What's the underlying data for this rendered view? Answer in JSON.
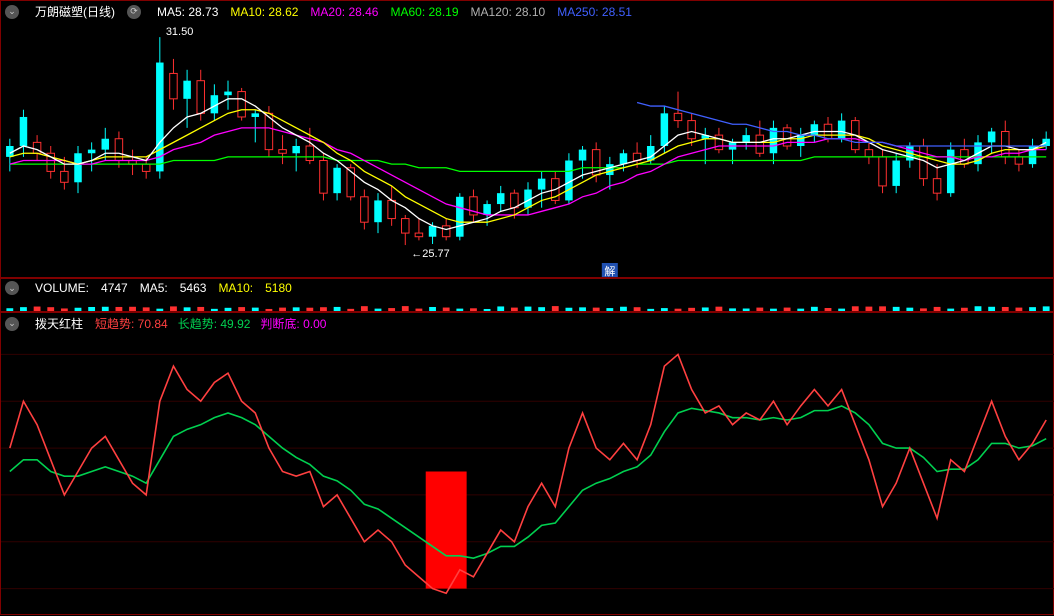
{
  "colors": {
    "bg": "#000000",
    "border": "#800000",
    "grid": "#300000",
    "text_white": "#ffffff",
    "text_gray": "#b0b0b0",
    "ma5": "#ffffff",
    "ma10": "#ffff00",
    "ma20": "#ff00ff",
    "ma60": "#00ff00",
    "ma120": "#b0b0b0",
    "ma250": "#4060ff",
    "candle_up": "#00ffff",
    "candle_down": "#ff3030",
    "volume_label": "#ffffff",
    "vol_ma10": "#ffff00",
    "short": "#ff4040",
    "long": "#00d050",
    "judge": "#ff00ff",
    "red_bar": "#ff0000"
  },
  "main_header": {
    "title": "万朗磁塑(日线)",
    "mas": [
      {
        "label": "MA5:",
        "value": "28.73",
        "colorKey": "ma5"
      },
      {
        "label": "MA10:",
        "value": "28.62",
        "colorKey": "ma10"
      },
      {
        "label": "MA20:",
        "value": "28.46",
        "colorKey": "ma20"
      },
      {
        "label": "MA60:",
        "value": "28.19",
        "colorKey": "ma60"
      },
      {
        "label": "MA120:",
        "value": "28.10",
        "colorKey": "ma120"
      },
      {
        "label": "MA250:",
        "value": "28.51",
        "colorKey": "ma250"
      }
    ]
  },
  "main_chart": {
    "ylim": [
      25.0,
      32.0
    ],
    "high_label": "31.50",
    "low_label": "25.77",
    "jie_label": "解",
    "candles": [
      {
        "o": 28.2,
        "h": 28.7,
        "l": 27.8,
        "c": 28.5,
        "up": true
      },
      {
        "o": 28.5,
        "h": 29.5,
        "l": 28.2,
        "c": 29.3,
        "up": true
      },
      {
        "o": 28.6,
        "h": 28.8,
        "l": 28.1,
        "c": 28.3,
        "up": false
      },
      {
        "o": 28.3,
        "h": 28.5,
        "l": 27.6,
        "c": 27.8,
        "up": false
      },
      {
        "o": 27.8,
        "h": 28.2,
        "l": 27.3,
        "c": 27.5,
        "up": false
      },
      {
        "o": 27.5,
        "h": 28.5,
        "l": 27.2,
        "c": 28.3,
        "up": true
      },
      {
        "o": 28.3,
        "h": 28.6,
        "l": 27.8,
        "c": 28.4,
        "up": true
      },
      {
        "o": 28.4,
        "h": 29.0,
        "l": 28.1,
        "c": 28.7,
        "up": true
      },
      {
        "o": 28.7,
        "h": 28.9,
        "l": 27.9,
        "c": 28.1,
        "up": false
      },
      {
        "o": 28.1,
        "h": 28.4,
        "l": 27.7,
        "c": 28.0,
        "up": false
      },
      {
        "o": 28.0,
        "h": 28.2,
        "l": 27.6,
        "c": 27.8,
        "up": false
      },
      {
        "o": 27.8,
        "h": 31.5,
        "l": 27.6,
        "c": 30.8,
        "up": true
      },
      {
        "o": 30.5,
        "h": 30.9,
        "l": 29.5,
        "c": 29.8,
        "up": false
      },
      {
        "o": 29.8,
        "h": 30.6,
        "l": 29.0,
        "c": 30.3,
        "up": true
      },
      {
        "o": 30.3,
        "h": 30.6,
        "l": 29.2,
        "c": 29.4,
        "up": false
      },
      {
        "o": 29.4,
        "h": 30.2,
        "l": 29.2,
        "c": 29.9,
        "up": true
      },
      {
        "o": 29.9,
        "h": 30.3,
        "l": 29.5,
        "c": 30.0,
        "up": true
      },
      {
        "o": 30.0,
        "h": 30.1,
        "l": 29.2,
        "c": 29.3,
        "up": false
      },
      {
        "o": 29.3,
        "h": 29.5,
        "l": 28.6,
        "c": 29.4,
        "up": true
      },
      {
        "o": 29.4,
        "h": 29.6,
        "l": 28.2,
        "c": 28.4,
        "up": false
      },
      {
        "o": 28.4,
        "h": 28.8,
        "l": 28.0,
        "c": 28.3,
        "up": false
      },
      {
        "o": 28.3,
        "h": 28.7,
        "l": 27.8,
        "c": 28.5,
        "up": true
      },
      {
        "o": 28.5,
        "h": 29.0,
        "l": 28.0,
        "c": 28.1,
        "up": false
      },
      {
        "o": 28.1,
        "h": 28.3,
        "l": 27.0,
        "c": 27.2,
        "up": false
      },
      {
        "o": 27.2,
        "h": 28.0,
        "l": 27.0,
        "c": 27.9,
        "up": true
      },
      {
        "o": 27.9,
        "h": 28.0,
        "l": 27.0,
        "c": 27.1,
        "up": false
      },
      {
        "o": 27.1,
        "h": 27.3,
        "l": 26.2,
        "c": 26.4,
        "up": false
      },
      {
        "o": 26.4,
        "h": 27.2,
        "l": 26.1,
        "c": 27.0,
        "up": true
      },
      {
        "o": 27.0,
        "h": 27.4,
        "l": 26.3,
        "c": 26.5,
        "up": false
      },
      {
        "o": 26.5,
        "h": 26.6,
        "l": 25.77,
        "c": 26.1,
        "up": false
      },
      {
        "o": 26.1,
        "h": 26.5,
        "l": 25.9,
        "c": 26.0,
        "up": false
      },
      {
        "o": 26.0,
        "h": 26.4,
        "l": 25.8,
        "c": 26.3,
        "up": true
      },
      {
        "o": 26.3,
        "h": 26.5,
        "l": 25.9,
        "c": 26.0,
        "up": false
      },
      {
        "o": 26.0,
        "h": 27.2,
        "l": 25.9,
        "c": 27.1,
        "up": true
      },
      {
        "o": 27.1,
        "h": 27.3,
        "l": 26.4,
        "c": 26.6,
        "up": false
      },
      {
        "o": 26.6,
        "h": 27.0,
        "l": 26.3,
        "c": 26.9,
        "up": true
      },
      {
        "o": 26.9,
        "h": 27.4,
        "l": 26.7,
        "c": 27.2,
        "up": true
      },
      {
        "o": 27.2,
        "h": 27.3,
        "l": 26.5,
        "c": 26.8,
        "up": false
      },
      {
        "o": 26.8,
        "h": 27.5,
        "l": 26.6,
        "c": 27.3,
        "up": true
      },
      {
        "o": 27.3,
        "h": 27.8,
        "l": 26.8,
        "c": 27.6,
        "up": true
      },
      {
        "o": 27.6,
        "h": 27.8,
        "l": 26.9,
        "c": 27.0,
        "up": false
      },
      {
        "o": 27.0,
        "h": 28.3,
        "l": 26.9,
        "c": 28.1,
        "up": true
      },
      {
        "o": 28.1,
        "h": 28.5,
        "l": 27.6,
        "c": 28.4,
        "up": true
      },
      {
        "o": 28.4,
        "h": 28.6,
        "l": 27.5,
        "c": 27.7,
        "up": false
      },
      {
        "o": 27.7,
        "h": 28.2,
        "l": 27.3,
        "c": 28.0,
        "up": true
      },
      {
        "o": 28.0,
        "h": 28.4,
        "l": 27.8,
        "c": 28.3,
        "up": true
      },
      {
        "o": 28.3,
        "h": 28.6,
        "l": 27.9,
        "c": 28.1,
        "up": false
      },
      {
        "o": 28.1,
        "h": 28.8,
        "l": 28.0,
        "c": 28.5,
        "up": true
      },
      {
        "o": 28.5,
        "h": 29.6,
        "l": 28.3,
        "c": 29.4,
        "up": true
      },
      {
        "o": 29.4,
        "h": 30.0,
        "l": 29.0,
        "c": 29.2,
        "up": false
      },
      {
        "o": 29.2,
        "h": 29.4,
        "l": 28.5,
        "c": 28.7,
        "up": false
      },
      {
        "o": 28.7,
        "h": 29.0,
        "l": 28.0,
        "c": 28.8,
        "up": true
      },
      {
        "o": 28.8,
        "h": 29.0,
        "l": 28.3,
        "c": 28.4,
        "up": false
      },
      {
        "o": 28.4,
        "h": 28.7,
        "l": 28.0,
        "c": 28.6,
        "up": true
      },
      {
        "o": 28.6,
        "h": 29.0,
        "l": 28.4,
        "c": 28.8,
        "up": true
      },
      {
        "o": 28.8,
        "h": 29.2,
        "l": 28.2,
        "c": 28.3,
        "up": false
      },
      {
        "o": 28.3,
        "h": 29.2,
        "l": 28.0,
        "c": 29.0,
        "up": true
      },
      {
        "o": 29.0,
        "h": 29.1,
        "l": 28.4,
        "c": 28.5,
        "up": false
      },
      {
        "o": 28.5,
        "h": 29.0,
        "l": 28.2,
        "c": 28.8,
        "up": true
      },
      {
        "o": 28.8,
        "h": 29.2,
        "l": 28.6,
        "c": 29.1,
        "up": true
      },
      {
        "o": 29.1,
        "h": 29.3,
        "l": 28.6,
        "c": 28.7,
        "up": false
      },
      {
        "o": 28.7,
        "h": 29.4,
        "l": 28.6,
        "c": 29.2,
        "up": true
      },
      {
        "o": 29.2,
        "h": 29.3,
        "l": 28.3,
        "c": 28.4,
        "up": false
      },
      {
        "o": 28.4,
        "h": 28.6,
        "l": 28.0,
        "c": 28.2,
        "up": false
      },
      {
        "o": 28.2,
        "h": 28.4,
        "l": 27.2,
        "c": 27.4,
        "up": false
      },
      {
        "o": 27.4,
        "h": 28.3,
        "l": 27.2,
        "c": 28.1,
        "up": true
      },
      {
        "o": 28.1,
        "h": 28.6,
        "l": 27.9,
        "c": 28.5,
        "up": true
      },
      {
        "o": 28.5,
        "h": 28.7,
        "l": 27.4,
        "c": 27.6,
        "up": false
      },
      {
        "o": 27.6,
        "h": 28.0,
        "l": 27.0,
        "c": 27.2,
        "up": false
      },
      {
        "o": 27.2,
        "h": 28.6,
        "l": 27.1,
        "c": 28.4,
        "up": true
      },
      {
        "o": 28.4,
        "h": 28.7,
        "l": 27.9,
        "c": 28.0,
        "up": false
      },
      {
        "o": 28.0,
        "h": 28.8,
        "l": 27.8,
        "c": 28.6,
        "up": true
      },
      {
        "o": 28.6,
        "h": 29.0,
        "l": 28.3,
        "c": 28.9,
        "up": true
      },
      {
        "o": 28.9,
        "h": 29.2,
        "l": 28.0,
        "c": 28.2,
        "up": false
      },
      {
        "o": 28.2,
        "h": 28.4,
        "l": 27.8,
        "c": 28.0,
        "up": false
      },
      {
        "o": 28.0,
        "h": 28.7,
        "l": 27.9,
        "c": 28.5,
        "up": true
      },
      {
        "o": 28.5,
        "h": 28.9,
        "l": 28.4,
        "c": 28.7,
        "up": true
      }
    ],
    "ma5": [
      28.3,
      28.5,
      28.4,
      28.2,
      28.0,
      28.0,
      28.1,
      28.3,
      28.3,
      28.2,
      28.1,
      28.6,
      29.0,
      29.3,
      29.4,
      29.6,
      29.8,
      29.8,
      29.6,
      29.3,
      29.0,
      28.8,
      28.6,
      28.3,
      28.1,
      27.8,
      27.5,
      27.3,
      27.0,
      26.8,
      26.5,
      26.3,
      26.2,
      26.3,
      26.4,
      26.5,
      26.7,
      26.8,
      27.0,
      27.2,
      27.3,
      27.5,
      27.7,
      27.8,
      27.9,
      28.0,
      28.1,
      28.2,
      28.5,
      28.8,
      28.9,
      28.8,
      28.7,
      28.6,
      28.6,
      28.6,
      28.7,
      28.7,
      28.8,
      28.9,
      28.9,
      28.9,
      28.8,
      28.6,
      28.4,
      28.3,
      28.2,
      28.1,
      27.9,
      28.0,
      28.1,
      28.3,
      28.5,
      28.5,
      28.4,
      28.4,
      28.6
    ],
    "ma10": [
      28.2,
      28.3,
      28.3,
      28.2,
      28.1,
      28.0,
      28.1,
      28.2,
      28.2,
      28.2,
      28.2,
      28.4,
      28.6,
      28.8,
      29.0,
      29.2,
      29.4,
      29.5,
      29.5,
      29.4,
      29.2,
      29.0,
      28.8,
      28.6,
      28.3,
      28.1,
      27.8,
      27.6,
      27.4,
      27.1,
      26.9,
      26.7,
      26.5,
      26.4,
      26.4,
      26.4,
      26.5,
      26.6,
      26.8,
      27.0,
      27.1,
      27.3,
      27.5,
      27.7,
      27.8,
      27.9,
      28.0,
      28.1,
      28.3,
      28.5,
      28.6,
      28.7,
      28.7,
      28.6,
      28.6,
      28.6,
      28.6,
      28.7,
      28.7,
      28.8,
      28.8,
      28.8,
      28.8,
      28.7,
      28.5,
      28.4,
      28.3,
      28.2,
      28.1,
      28.0,
      28.0,
      28.1,
      28.3,
      28.4,
      28.4,
      28.4,
      28.5
    ],
    "ma20": [
      28.0,
      28.1,
      28.1,
      28.1,
      28.1,
      28.0,
      28.0,
      28.1,
      28.1,
      28.1,
      28.1,
      28.2,
      28.4,
      28.5,
      28.6,
      28.8,
      28.9,
      29.0,
      29.0,
      29.0,
      28.9,
      28.8,
      28.7,
      28.6,
      28.4,
      28.3,
      28.1,
      27.9,
      27.7,
      27.5,
      27.3,
      27.1,
      26.9,
      26.8,
      26.7,
      26.6,
      26.6,
      26.6,
      26.6,
      26.7,
      26.8,
      26.9,
      27.1,
      27.2,
      27.4,
      27.5,
      27.7,
      27.8,
      28.0,
      28.2,
      28.3,
      28.4,
      28.5,
      28.5,
      28.5,
      28.5,
      28.5,
      28.6,
      28.6,
      28.6,
      28.7,
      28.7,
      28.7,
      28.6,
      28.6,
      28.5,
      28.4,
      28.3,
      28.2,
      28.2,
      28.1,
      28.2,
      28.2,
      28.3,
      28.3,
      28.4,
      28.4
    ],
    "ma60": [
      28.0,
      28.0,
      28.0,
      28.0,
      28.0,
      28.0,
      28.0,
      28.0,
      28.0,
      28.0,
      28.0,
      28.0,
      28.1,
      28.1,
      28.1,
      28.1,
      28.2,
      28.2,
      28.2,
      28.2,
      28.2,
      28.2,
      28.2,
      28.2,
      28.1,
      28.1,
      28.1,
      28.1,
      28.0,
      28.0,
      27.9,
      27.9,
      27.9,
      27.8,
      27.8,
      27.8,
      27.8,
      27.8,
      27.8,
      27.8,
      27.8,
      27.8,
      27.9,
      27.9,
      27.9,
      27.9,
      28.0,
      28.0,
      28.0,
      28.1,
      28.1,
      28.1,
      28.1,
      28.1,
      28.1,
      28.1,
      28.1,
      28.1,
      28.1,
      28.2,
      28.2,
      28.2,
      28.2,
      28.2,
      28.2,
      28.2,
      28.2,
      28.2,
      28.2,
      28.2,
      28.2,
      28.2,
      28.2,
      28.2,
      28.2,
      28.2,
      28.2
    ],
    "ma250_segment": [
      29.7,
      29.6,
      29.6,
      29.5,
      29.4,
      29.3,
      29.2,
      29.1,
      29.1,
      29.0,
      28.9,
      28.9,
      28.8,
      28.8,
      28.7,
      28.7,
      28.6,
      28.6,
      28.6,
      28.5,
      28.5,
      28.5,
      28.5,
      28.5,
      28.5,
      28.5,
      28.5,
      28.5,
      28.5,
      28.5,
      28.5
    ],
    "ma250_start_idx": 46
  },
  "volume_header": {
    "label": "VOLUME:",
    "value": "4747",
    "ma5_label": "MA5:",
    "ma5_value": "5463",
    "ma10_label": "MA10:",
    "ma10_value": "5180"
  },
  "indicator_header": {
    "title": "拨天红柱",
    "items": [
      {
        "label": "短趋势:",
        "value": "70.84",
        "colorKey": "short"
      },
      {
        "label": "长趋势:",
        "value": "49.92",
        "colorKey": "long"
      },
      {
        "label": "判断底:",
        "value": "0.00",
        "colorKey": "judge"
      }
    ]
  },
  "indicator_chart": {
    "ylim": [
      -10,
      110
    ],
    "grid_y": [
      0,
      20,
      40,
      60,
      80,
      100
    ],
    "red_bar_idx": 32,
    "red_bar_width": 3,
    "short": [
      60,
      80,
      70,
      55,
      40,
      50,
      60,
      65,
      55,
      45,
      40,
      80,
      95,
      85,
      80,
      88,
      92,
      80,
      75,
      60,
      50,
      48,
      50,
      35,
      40,
      30,
      20,
      25,
      20,
      10,
      5,
      0,
      -2,
      8,
      5,
      15,
      25,
      20,
      35,
      45,
      35,
      60,
      75,
      60,
      55,
      62,
      55,
      70,
      95,
      100,
      85,
      75,
      78,
      70,
      75,
      72,
      80,
      70,
      78,
      85,
      78,
      85,
      70,
      55,
      35,
      45,
      60,
      45,
      30,
      55,
      50,
      65,
      80,
      65,
      55,
      62,
      72
    ],
    "long": [
      50,
      55,
      55,
      50,
      48,
      48,
      50,
      52,
      50,
      48,
      45,
      55,
      65,
      68,
      70,
      73,
      75,
      73,
      70,
      65,
      60,
      56,
      53,
      48,
      46,
      42,
      36,
      34,
      30,
      26,
      22,
      18,
      14,
      14,
      13,
      15,
      18,
      18,
      22,
      27,
      28,
      35,
      42,
      45,
      47,
      50,
      52,
      57,
      67,
      75,
      77,
      76,
      75,
      73,
      73,
      72,
      73,
      72,
      73,
      76,
      76,
      78,
      75,
      70,
      62,
      60,
      60,
      56,
      50,
      51,
      51,
      55,
      62,
      62,
      60,
      61,
      64
    ]
  }
}
